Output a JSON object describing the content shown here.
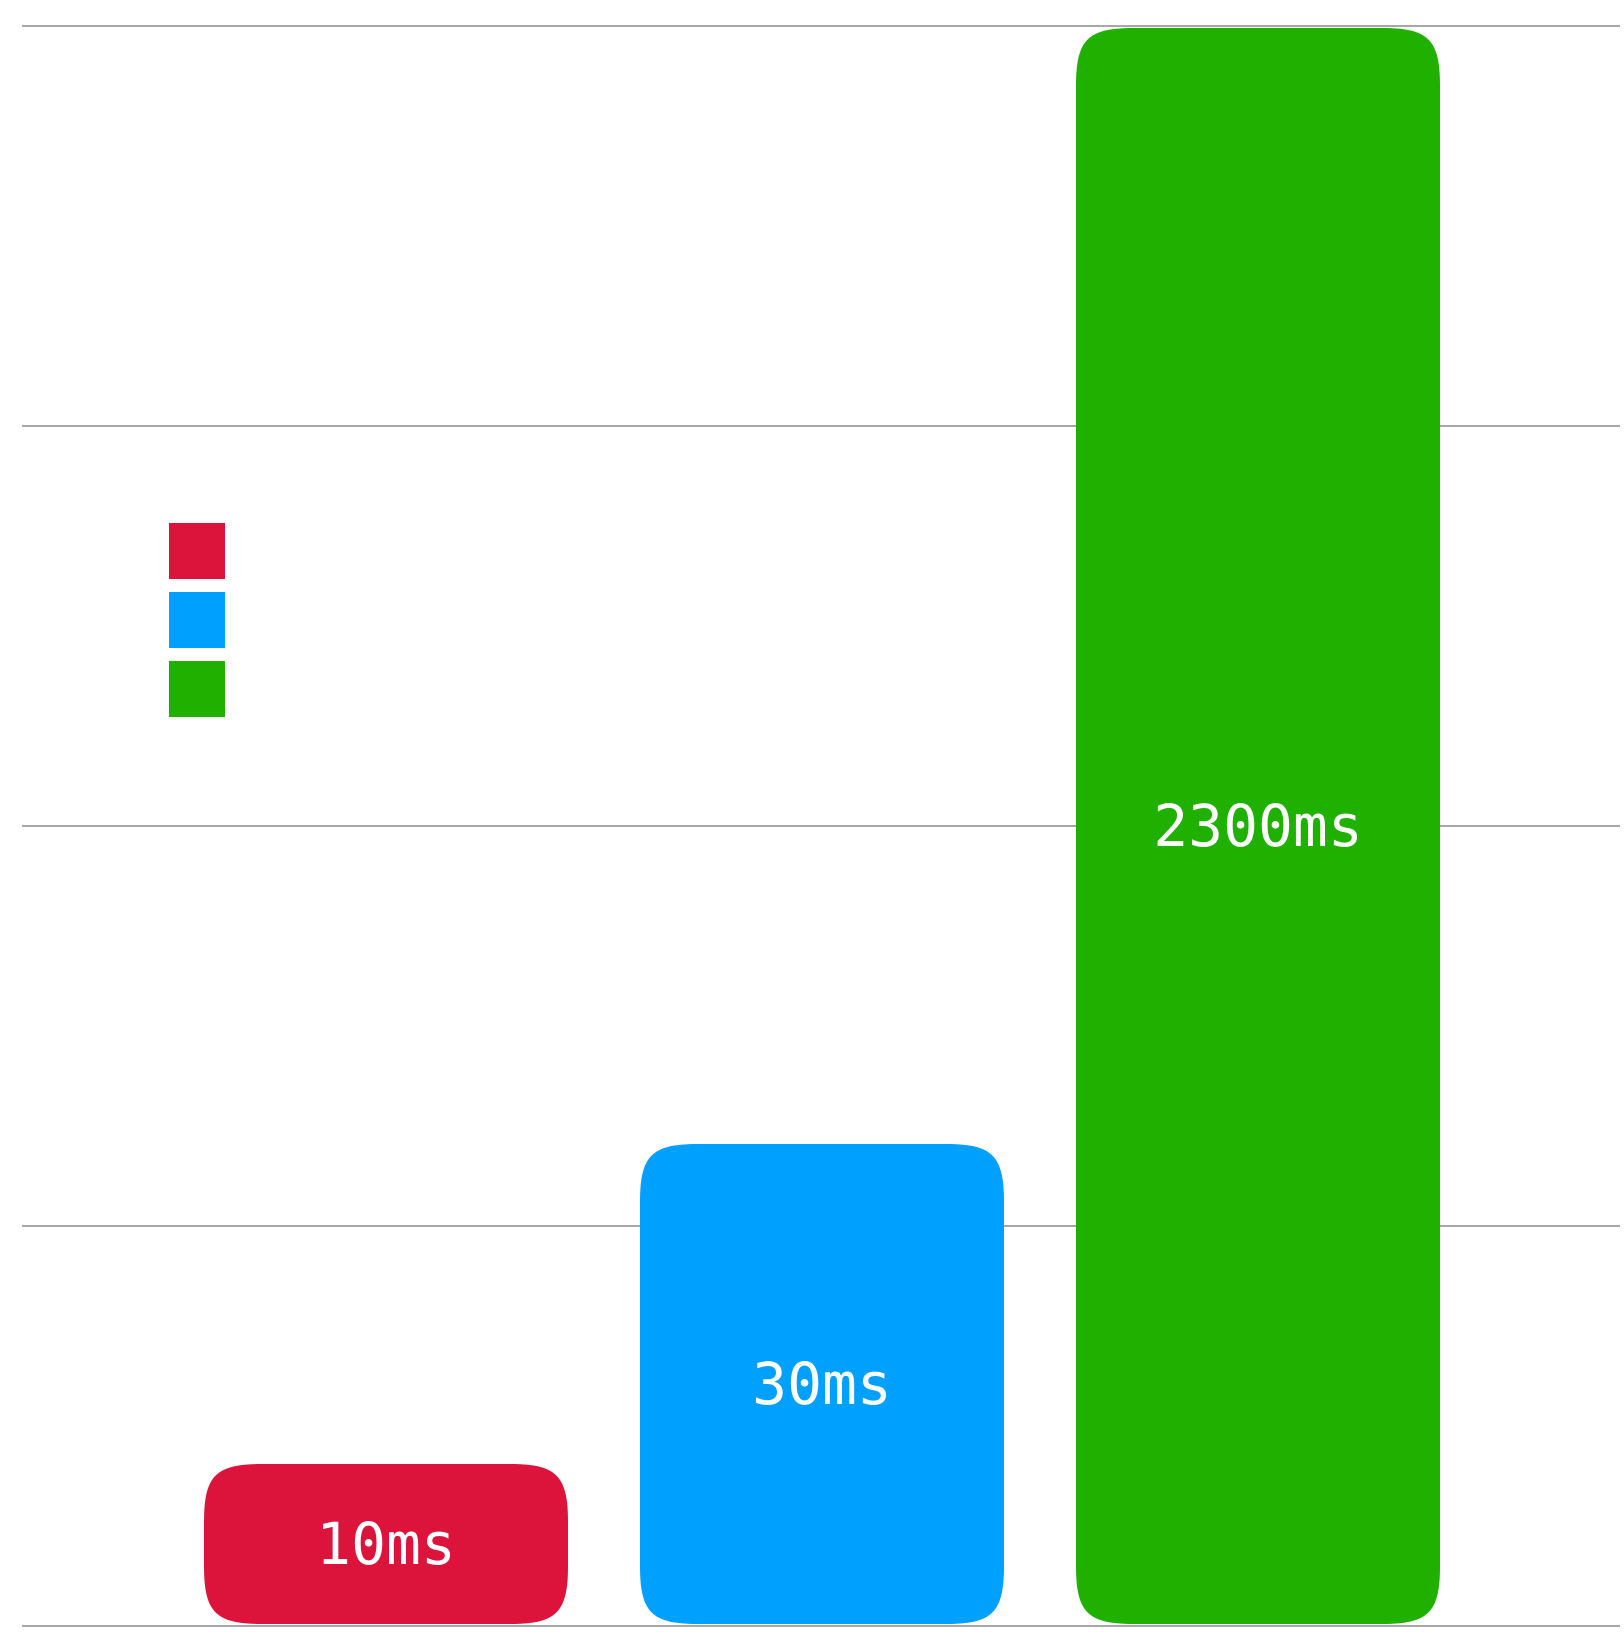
{
  "chart_data": {
    "type": "bar",
    "categories": [
      "",
      "",
      ""
    ],
    "values": [
      10,
      30,
      2300
    ],
    "data_labels": [
      "10ms",
      "30ms",
      "2300ms"
    ],
    "colors": [
      "#dc143c",
      "#00a0ff",
      "#1fb000"
    ],
    "legend": {
      "placement": "left",
      "entries": [
        {
          "color": "#dc143c",
          "label": ""
        },
        {
          "color": "#00a0ff",
          "label": ""
        },
        {
          "color": "#1fb000",
          "label": ""
        }
      ]
    },
    "grid": true,
    "gridline_count": 5,
    "title": "",
    "xlabel": "",
    "ylabel": ""
  }
}
